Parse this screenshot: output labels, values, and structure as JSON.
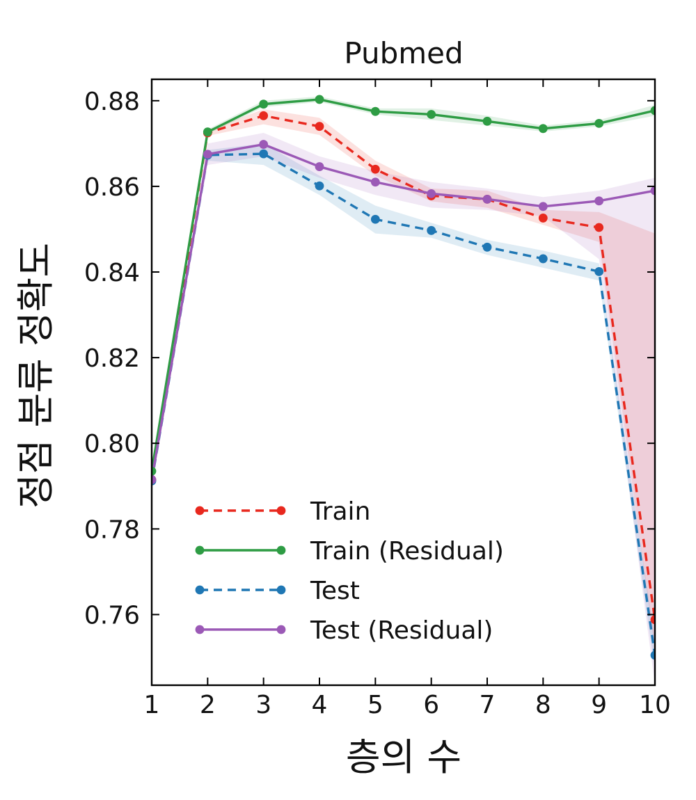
{
  "chart_data": {
    "type": "line",
    "title": "Pubmed",
    "xlabel": "층의 수",
    "ylabel": "정점 분류 정확도",
    "x": [
      1,
      2,
      3,
      4,
      5,
      6,
      7,
      8,
      9,
      10
    ],
    "xlim": [
      1,
      10
    ],
    "ylim": [
      0.7435,
      0.885
    ],
    "xticks": [
      "1",
      "2",
      "3",
      "4",
      "5",
      "6",
      "7",
      "8",
      "9",
      "10"
    ],
    "yticks": [
      "0.76",
      "0.78",
      "0.80",
      "0.82",
      "0.84",
      "0.86",
      "0.88"
    ],
    "grid": false,
    "legend_position": "lower-left",
    "series": [
      {
        "name": "Train",
        "color": "#e8281e",
        "style": "dashed",
        "values": [
          0.7915,
          0.8725,
          0.8765,
          0.874,
          0.864,
          0.8578,
          0.857,
          0.8526,
          0.8504,
          0.7588
        ],
        "lower": [
          0.7915,
          0.8718,
          0.8745,
          0.872,
          0.8625,
          0.8565,
          0.855,
          0.851,
          0.847,
          0.752
        ],
        "upper": [
          0.7915,
          0.8732,
          0.878,
          0.876,
          0.866,
          0.8595,
          0.859,
          0.8545,
          0.854,
          0.849
        ]
      },
      {
        "name": "Train (Residual)",
        "color": "#2e9c44",
        "style": "solid",
        "values": [
          0.7935,
          0.8727,
          0.8792,
          0.8803,
          0.8775,
          0.8768,
          0.8752,
          0.8735,
          0.8747,
          0.8777
        ],
        "lower": [
          0.7935,
          0.8722,
          0.8785,
          0.8797,
          0.8768,
          0.8755,
          0.8742,
          0.8728,
          0.874,
          0.8765
        ],
        "upper": [
          0.7935,
          0.8733,
          0.88,
          0.881,
          0.8782,
          0.8782,
          0.8765,
          0.8742,
          0.8755,
          0.879
        ]
      },
      {
        "name": "Test",
        "color": "#1f77b4",
        "style": "dashed",
        "values": [
          0.7912,
          0.8673,
          0.8676,
          0.8601,
          0.8523,
          0.8497,
          0.8458,
          0.8431,
          0.8401,
          0.7505
        ],
        "lower": [
          0.7912,
          0.866,
          0.865,
          0.858,
          0.849,
          0.848,
          0.844,
          0.841,
          0.838,
          0.747
        ],
        "upper": [
          0.7912,
          0.8685,
          0.87,
          0.8625,
          0.8555,
          0.8515,
          0.8475,
          0.845,
          0.842,
          0.754
        ]
      },
      {
        "name": "Test (Residual)",
        "color": "#9b59b6",
        "style": "solid",
        "values": [
          0.7915,
          0.8675,
          0.8698,
          0.8646,
          0.861,
          0.8583,
          0.857,
          0.8553,
          0.8566,
          0.859
        ],
        "lower": [
          0.7915,
          0.865,
          0.867,
          0.862,
          0.858,
          0.855,
          0.8545,
          0.853,
          0.843,
          0.7435
        ],
        "upper": [
          0.7915,
          0.87,
          0.8725,
          0.867,
          0.8635,
          0.861,
          0.8595,
          0.8575,
          0.859,
          0.862
        ]
      }
    ]
  }
}
